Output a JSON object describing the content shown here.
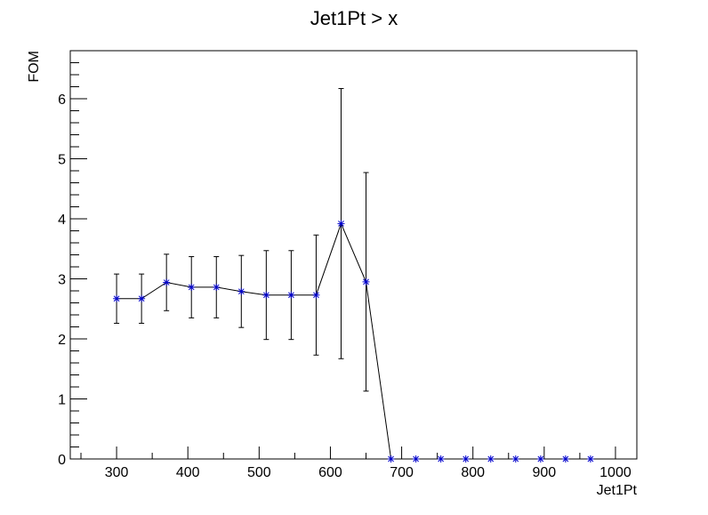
{
  "chart_data": {
    "type": "scatter",
    "title": "Jet1Pt > x",
    "xlabel": "Jet1Pt",
    "ylabel": "FOM",
    "xlim": [
      235,
      1030
    ],
    "ylim": [
      0,
      6.8
    ],
    "x_ticks": [
      300,
      400,
      500,
      600,
      700,
      800,
      900,
      1000
    ],
    "y_ticks": [
      0,
      1,
      2,
      3,
      4,
      5,
      6
    ],
    "grid": false,
    "connect_points": true,
    "marker": "star",
    "colors": {
      "marker": "#0000cc",
      "line": "#000000",
      "axis": "#000000"
    },
    "series": [
      {
        "x": [
          300,
          335,
          370,
          405,
          440,
          475,
          510,
          545,
          580,
          615,
          650,
          685,
          720,
          755,
          790,
          825,
          860,
          895,
          930,
          965
        ],
        "y": [
          2.67,
          2.67,
          2.94,
          2.86,
          2.86,
          2.79,
          2.73,
          2.73,
          2.73,
          3.92,
          2.95,
          0,
          0,
          0,
          0,
          0,
          0,
          0,
          0,
          0
        ],
        "yerr": [
          0.41,
          0.41,
          0.47,
          0.51,
          0.51,
          0.6,
          0.74,
          0.74,
          1.0,
          2.25,
          1.82,
          0,
          0,
          0,
          0,
          0,
          0,
          0,
          0,
          0
        ]
      }
    ]
  }
}
